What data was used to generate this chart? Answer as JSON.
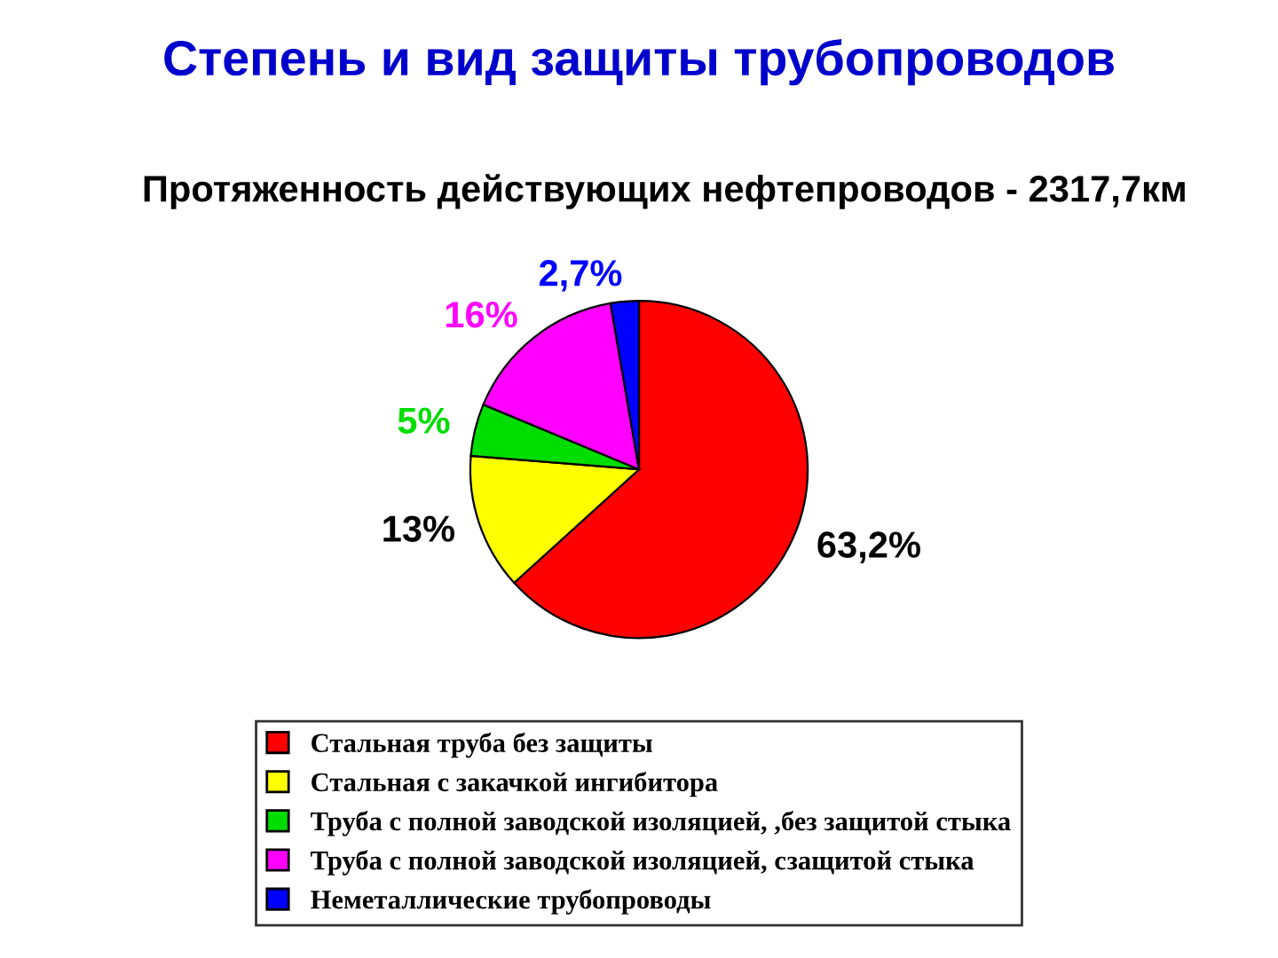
{
  "chart_data": {
    "type": "pie",
    "title": "Степень и вид защиты трубопроводов",
    "subtitle": "Протяженность действующих нефтепроводов - 2317,7км",
    "categories": [
      "Стальная труба без защиты",
      "Стальная с закачкой ингибитора",
      "Труба с полной заводской изоляцией, ,без защитой стыка",
      "Труба с полной заводской изоляцией, сзащитой стыка",
      "Неметаллические трубопроводы"
    ],
    "values": [
      63.2,
      13,
      5,
      16,
      2.7
    ],
    "value_labels": [
      "63,2%",
      "13%",
      "5%",
      "16%",
      "2,7%"
    ],
    "colors": [
      "#ff0000",
      "#ffff00",
      "#00dd00",
      "#ff00ff",
      "#0000ff"
    ],
    "legend": "bottom"
  }
}
